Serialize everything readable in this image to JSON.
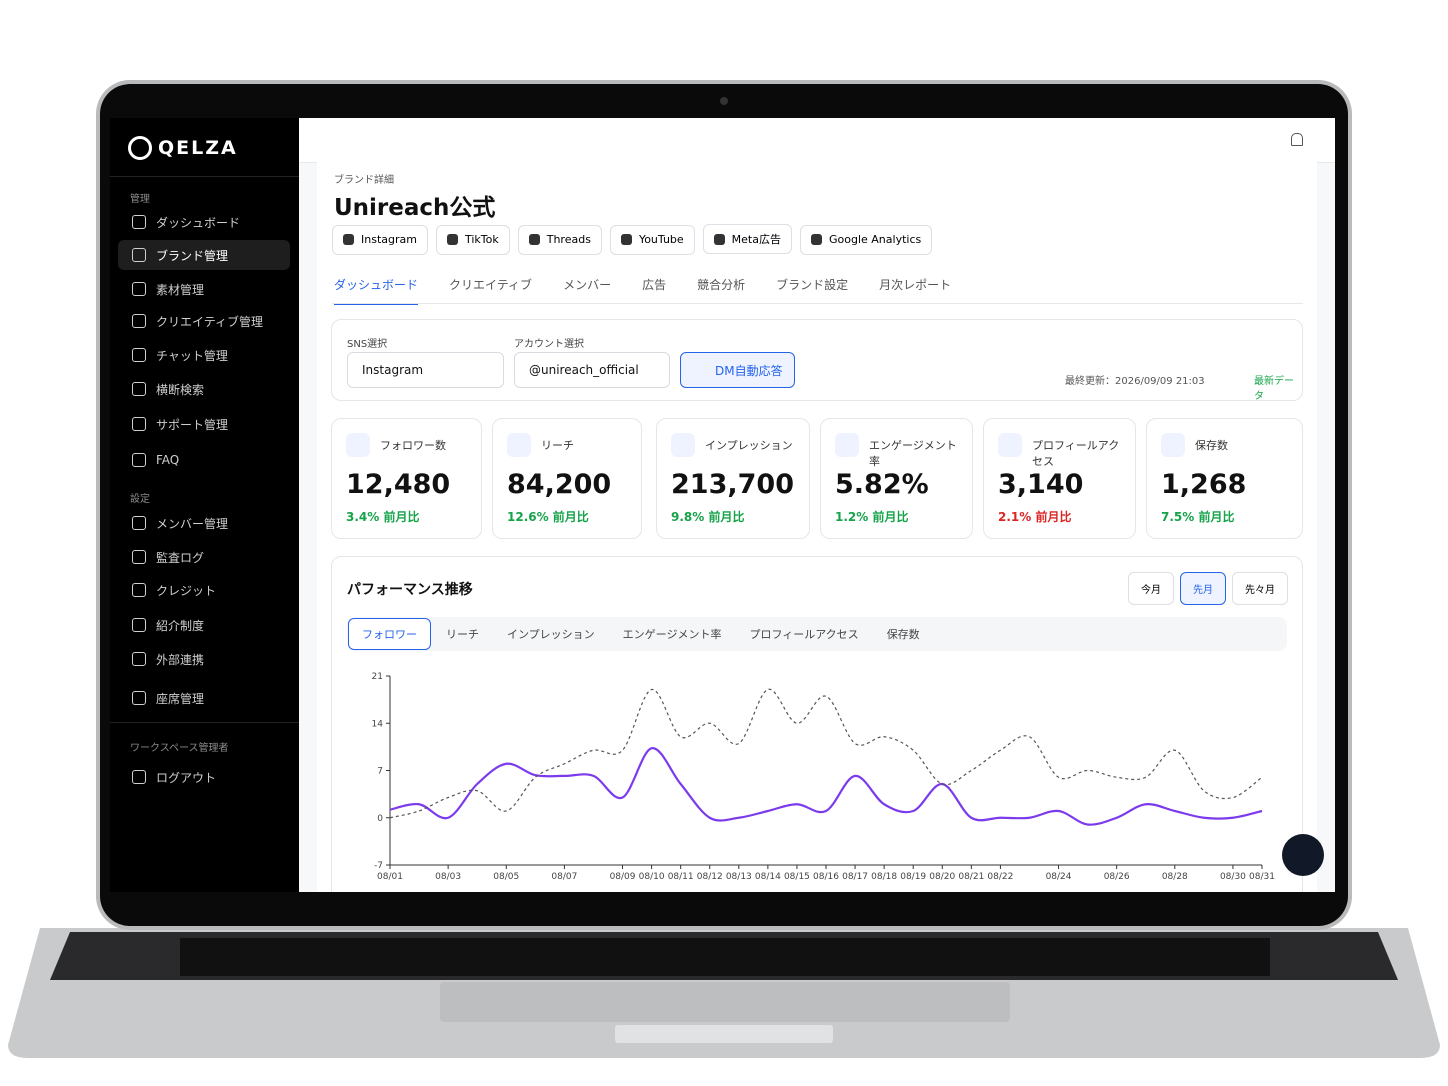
{
  "sidebar": {
    "logo": "QELZA",
    "sections": [
      {
        "heading": "管理",
        "items": [
          {
            "label": "ダッシュボード"
          },
          {
            "label": "ブランド管理",
            "active": true
          },
          {
            "label": "素材管理"
          },
          {
            "label": "クリエイティブ管理"
          },
          {
            "label": "チャット管理"
          },
          {
            "label": "横断検索"
          },
          {
            "label": "サポート管理"
          },
          {
            "label": "FAQ"
          }
        ]
      },
      {
        "heading": "設定",
        "items": [
          {
            "label": "メンバー管理"
          },
          {
            "label": "監査ログ"
          },
          {
            "label": "クレジット"
          },
          {
            "label": "紹介制度"
          },
          {
            "label": "外部連携"
          },
          {
            "label": "座席管理"
          }
        ]
      },
      {
        "heading": "ワークスペース管理者",
        "items": [
          {
            "label": "ログアウト"
          }
        ]
      }
    ]
  },
  "header": {
    "breadcrumb": "ブランド詳細",
    "title": "Unireach公式",
    "platforms": [
      "Instagram",
      "TikTok",
      "Threads",
      "YouTube",
      "Meta広告",
      "Google Analytics"
    ],
    "tabs": [
      {
        "label": "ダッシュボード",
        "active": true
      },
      {
        "label": "クリエイティブ"
      },
      {
        "label": "メンバー"
      },
      {
        "label": "広告"
      },
      {
        "label": "競合分析"
      },
      {
        "label": "ブランド設定"
      },
      {
        "label": "月次レポート"
      }
    ]
  },
  "filters": {
    "sns_label": "SNS選択",
    "sns_value": "Instagram",
    "account_label": "アカウント選択",
    "account_value": "@unireach_official",
    "button": "DM自動応答",
    "updated": "最終更新：2026/09/09 21:03",
    "status": "最新データ"
  },
  "stats": [
    {
      "label": "フォロワー数",
      "value": "12,480",
      "change": "3.4% 前月比",
      "trend": "up"
    },
    {
      "label": "リーチ",
      "value": "84,200",
      "change": "12.6% 前月比",
      "trend": "up"
    },
    {
      "label": "インプレッション",
      "value": "213,700",
      "change": "9.8% 前月比",
      "trend": "up"
    },
    {
      "label": "エンゲージメント率",
      "value": "5.82%",
      "change": "1.2% 前月比",
      "trend": "up"
    },
    {
      "label": "プロフィールアクセス",
      "value": "3,140",
      "change": "2.1% 前月比",
      "trend": "down"
    },
    {
      "label": "保存数",
      "value": "1,268",
      "change": "7.5% 前月比",
      "trend": "up"
    }
  ],
  "performance": {
    "title": "パフォーマンス推移",
    "periods": [
      {
        "label": "今月"
      },
      {
        "label": "先月",
        "active": true
      },
      {
        "label": "先々月"
      }
    ],
    "metrics": [
      {
        "label": "フォロワー",
        "active": true
      },
      {
        "label": "リーチ"
      },
      {
        "label": "インプレッション"
      },
      {
        "label": "エンゲージメント率"
      },
      {
        "label": "プロフィールアクセス"
      },
      {
        "label": "保存数"
      }
    ]
  },
  "chart_data": {
    "type": "line",
    "categories": [
      "08/01",
      null,
      "08/03",
      null,
      "08/05",
      null,
      "08/07",
      null,
      "08/09",
      "08/10",
      "08/11",
      "08/12",
      "08/13",
      "08/14",
      "08/15",
      "08/16",
      "08/17",
      "08/18",
      "08/19",
      "08/20",
      "08/21",
      "08/22",
      null,
      "08/24",
      null,
      "08/26",
      null,
      "08/28",
      null,
      "08/30",
      "08/31"
    ],
    "series": [
      {
        "color": "#7c3aed",
        "style": "solid",
        "values": [
          1.2,
          2,
          0,
          5,
          8,
          6.3,
          6.2,
          6.2,
          3,
          10.3,
          5,
          0,
          0,
          1,
          2,
          1,
          6.2,
          2,
          1,
          5,
          0,
          0,
          0,
          1,
          -1,
          0,
          2,
          1,
          0,
          0,
          1
        ]
      },
      {
        "color": "#555555",
        "style": "dashed",
        "values": [
          0,
          1,
          3,
          4,
          1,
          6,
          8,
          10,
          10,
          19,
          12,
          14,
          11,
          19,
          14,
          18,
          11,
          12,
          10,
          5,
          7,
          10,
          12,
          6,
          7,
          6,
          6,
          10,
          4,
          3,
          6
        ]
      }
    ],
    "ylim": [
      -7,
      21
    ],
    "yticks": [
      -7,
      0,
      7,
      14,
      21
    ],
    "grid": false
  }
}
